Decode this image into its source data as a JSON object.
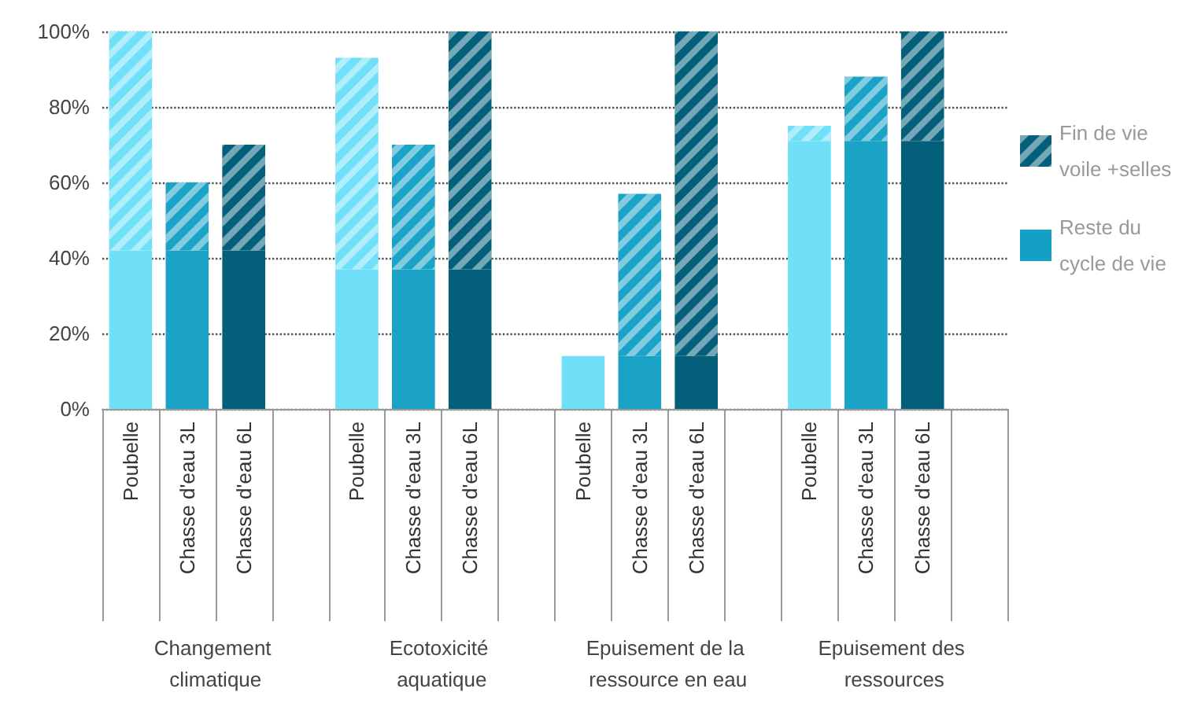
{
  "chart_data": {
    "type": "bar",
    "stacked": true,
    "categories": [
      "Poubelle",
      "Chasse d'eau 3L",
      "Chasse d'eau 6L",
      null,
      "Poubelle",
      "Chasse d'eau 3L",
      "Chasse d'eau 6L",
      null,
      "Poubelle",
      "Chasse d'eau 3L",
      "Chasse d'eau 6L",
      null,
      "Poubelle",
      "Chasse d'eau 3L",
      "Chasse d'eau 6L",
      null
    ],
    "series": [
      {
        "name": "Reste du cycle de vie",
        "color": "#14a0c4",
        "colors": [
          "#6fe0f7",
          "#1aa3c6",
          "#04607a",
          null,
          "#6fe0f7",
          "#1aa3c6",
          "#04607a",
          null,
          "#6fe0f7",
          "#1aa3c6",
          "#04607a",
          null,
          "#6fe0f7",
          "#1aa3c6",
          "#04607a",
          null
        ],
        "values": [
          42,
          42,
          42,
          null,
          37,
          37,
          37,
          null,
          14,
          14,
          14,
          null,
          71,
          71,
          71,
          null
        ]
      },
      {
        "name": "Fin de vie voile +selles",
        "color": "#04607a",
        "colors": [
          "#6fe0f7",
          "#1aa3c6",
          "#04607a",
          null,
          "#6fe0f7",
          "#1aa3c6",
          "#04607a",
          null,
          "#6fe0f7",
          "#1aa3c6",
          "#04607a",
          null,
          "#6fe0f7",
          "#1aa3c6",
          "#04607a",
          null
        ],
        "values": [
          58,
          18,
          28,
          null,
          56,
          33,
          63,
          null,
          0,
          43,
          86,
          null,
          4,
          17,
          29,
          null
        ]
      }
    ],
    "ylim": [
      0,
      100
    ],
    "yticks": [
      {
        "value": 0,
        "label": "0%"
      },
      {
        "value": 20,
        "label": "20%"
      },
      {
        "value": 40,
        "label": "40%"
      },
      {
        "value": 60,
        "label": "60%"
      },
      {
        "value": 80,
        "label": "80%"
      },
      {
        "value": 100,
        "label": "100%"
      }
    ],
    "grid": "y",
    "legend": "right",
    "annotations": [
      "Changement climatique",
      "Ecotoxicité aquatique",
      "Epuisement de la ressource en eau",
      "Epuisement des ressources"
    ]
  }
}
